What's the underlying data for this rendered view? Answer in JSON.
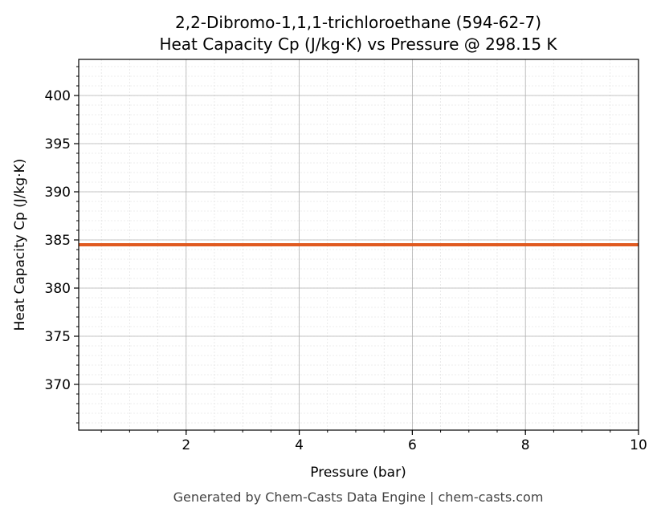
{
  "chart_data": {
    "type": "line",
    "title_line1": "2,2-Dibromo-1,1,1-trichloroethane (594-62-7)",
    "title_line2": "Heat Capacity Cp (J/kg·K) vs Pressure @ 298.15 K",
    "xlabel": "Pressure (bar)",
    "ylabel": "Heat Capacity Cp (J/kg·K)",
    "xlim": [
      0.1,
      10
    ],
    "ylim": [
      365.25,
      403.75
    ],
    "xticks": [
      2,
      4,
      6,
      8,
      10
    ],
    "yticks": [
      370,
      375,
      380,
      385,
      390,
      395,
      400
    ],
    "grid": true,
    "series": [
      {
        "name": "Cp",
        "color": "#e05a20",
        "x": [
          0.1,
          1,
          2,
          3,
          4,
          5,
          6,
          7,
          8,
          9,
          10
        ],
        "y": [
          384.5,
          384.5,
          384.5,
          384.5,
          384.5,
          384.5,
          384.5,
          384.5,
          384.5,
          384.5,
          384.5
        ]
      }
    ]
  },
  "footer": "Generated by Chem-Casts Data Engine | chem-casts.com"
}
